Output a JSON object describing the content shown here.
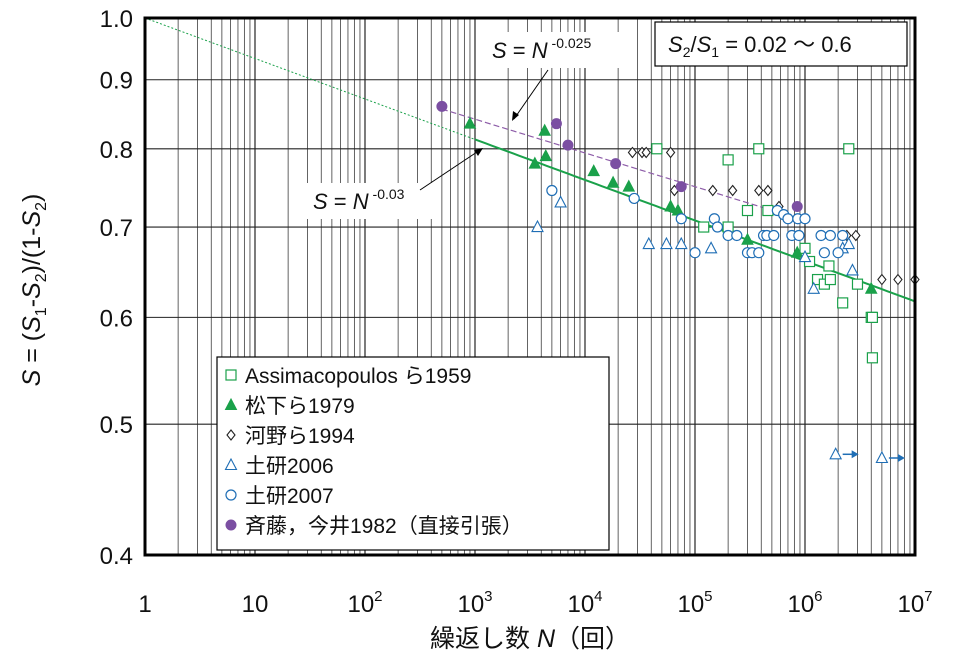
{
  "chart_data": {
    "type": "scatter",
    "xscale": "log",
    "yscale": "log",
    "xlim": [
      1,
      10000000
    ],
    "ylim": [
      0.4,
      1.0
    ],
    "xlabel": "繰返し数 N（回）",
    "ylabel": "S = (S1-S2)/(1-S2)",
    "x_ticks": [
      {
        "base": "1",
        "exp": ""
      },
      {
        "base": "10",
        "exp": ""
      },
      {
        "base": "10",
        "exp": "2"
      },
      {
        "base": "10",
        "exp": "3"
      },
      {
        "base": "10",
        "exp": "4"
      },
      {
        "base": "10",
        "exp": "5"
      },
      {
        "base": "10",
        "exp": "6"
      },
      {
        "base": "10",
        "exp": "7"
      }
    ],
    "y_ticks": [
      "0.4",
      "0.5",
      "0.6",
      "0.7",
      "0.8",
      "0.9",
      "1.0"
    ],
    "grid": true,
    "annotation_box": "S2/S1 = 0.02 ～ 0.6",
    "fit_lines": [
      {
        "label": "S = N -0.03",
        "exponent": -0.03,
        "color": "#1aa14a"
      },
      {
        "label": "S = N -0.025",
        "exponent": -0.025,
        "color": "#8d5ca8"
      }
    ],
    "legend": {
      "placement": "bottom-left",
      "entries": [
        "Assimacopoulos ら1959",
        "松下ら1979",
        "河野ら1994",
        "土研2006",
        "土研2007",
        "斉藤，今井1982（直接引張）"
      ]
    },
    "series": [
      {
        "name": "Assimacopoulos ら1959",
        "marker": "open-square",
        "color": "#1aa14a",
        "points": [
          [
            45000,
            0.8
          ],
          [
            200000,
            0.785
          ],
          [
            380000,
            0.8
          ],
          [
            2500000,
            0.8
          ],
          [
            300000,
            0.72
          ],
          [
            460000,
            0.72
          ],
          [
            120000,
            0.7
          ],
          [
            200000,
            0.7
          ],
          [
            1000000,
            0.675
          ],
          [
            1100000,
            0.66
          ],
          [
            1300000,
            0.64
          ],
          [
            1500000,
            0.635
          ],
          [
            1650000,
            0.655
          ],
          [
            1700000,
            0.64
          ],
          [
            2200000,
            0.615
          ],
          [
            3000000,
            0.635
          ],
          [
            4000000,
            0.6
          ],
          [
            4100000,
            0.6
          ],
          [
            4100000,
            0.56
          ]
        ]
      },
      {
        "name": "松下ら1979",
        "marker": "filled-triangle",
        "color": "#1aa14a",
        "points": [
          [
            900,
            0.835
          ],
          [
            3500,
            0.78
          ],
          [
            4300,
            0.825
          ],
          [
            4400,
            0.79
          ],
          [
            12000,
            0.77
          ],
          [
            18000,
            0.755
          ],
          [
            25000,
            0.75
          ],
          [
            60000,
            0.725
          ],
          [
            70000,
            0.72
          ],
          [
            300000,
            0.685
          ],
          [
            850000,
            0.67
          ],
          [
            4000000,
            0.63
          ]
        ]
      },
      {
        "name": "河野ら1994",
        "marker": "open-diamond",
        "color": "#222222",
        "points": [
          [
            27000,
            0.795
          ],
          [
            33000,
            0.795
          ],
          [
            36000,
            0.795
          ],
          [
            60000,
            0.795
          ],
          [
            65000,
            0.745
          ],
          [
            145000,
            0.745
          ],
          [
            220000,
            0.745
          ],
          [
            380000,
            0.745
          ],
          [
            460000,
            0.745
          ],
          [
            580000,
            0.725
          ],
          [
            2400000,
            0.69
          ],
          [
            2900000,
            0.69
          ],
          [
            5000000,
            0.64
          ],
          [
            7000000,
            0.64
          ],
          [
            10000000,
            0.64
          ]
        ]
      },
      {
        "name": "土研2006",
        "marker": "open-triangle",
        "color": "#1f6eb5",
        "points": [
          [
            3700,
            0.7
          ],
          [
            6000,
            0.73
          ],
          [
            38000,
            0.68
          ],
          [
            55000,
            0.68
          ],
          [
            75000,
            0.68
          ],
          [
            140000,
            0.675
          ],
          [
            1000000,
            0.665
          ],
          [
            1200000,
            0.63
          ],
          [
            2200000,
            0.675
          ],
          [
            2500000,
            0.68
          ],
          [
            2700000,
            0.65
          ],
          [
            1900000,
            0.475
          ],
          [
            5000000,
            0.472
          ]
        ]
      },
      {
        "name": "土研2007",
        "marker": "open-circle",
        "color": "#1f6eb5",
        "points": [
          [
            5000,
            0.745
          ],
          [
            28000,
            0.735
          ],
          [
            75000,
            0.71
          ],
          [
            100000,
            0.67
          ],
          [
            150000,
            0.71
          ],
          [
            160000,
            0.7
          ],
          [
            200000,
            0.69
          ],
          [
            240000,
            0.69
          ],
          [
            300000,
            0.67
          ],
          [
            330000,
            0.67
          ],
          [
            380000,
            0.67
          ],
          [
            420000,
            0.69
          ],
          [
            450000,
            0.69
          ],
          [
            520000,
            0.69
          ],
          [
            560000,
            0.72
          ],
          [
            640000,
            0.715
          ],
          [
            700000,
            0.71
          ],
          [
            760000,
            0.69
          ],
          [
            860000,
            0.71
          ],
          [
            880000,
            0.69
          ],
          [
            1000000,
            0.71
          ],
          [
            1400000,
            0.69
          ],
          [
            1500000,
            0.67
          ],
          [
            1700000,
            0.69
          ],
          [
            2000000,
            0.67
          ],
          [
            2200000,
            0.69
          ]
        ]
      },
      {
        "name": "斉藤，今井1982（直接引張）",
        "marker": "filled-circle",
        "color": "#7b4fa2",
        "points": [
          [
            500,
            0.86
          ],
          [
            5500,
            0.835
          ],
          [
            7000,
            0.805
          ],
          [
            19000,
            0.78
          ],
          [
            75000,
            0.75
          ],
          [
            850000,
            0.725
          ]
        ]
      }
    ],
    "arrow_points": [
      [
        1900000,
        0.475
      ],
      [
        5000000,
        0.472
      ]
    ]
  }
}
